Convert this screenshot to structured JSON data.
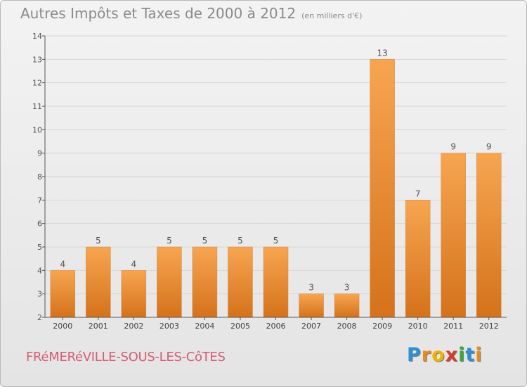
{
  "title": "Autres Impôts et Taxes de 2000 à 2012",
  "subtitle": "(en milliers d'€)",
  "commune": "FRéMERéVILLE-SOUS-LES-CôTES",
  "logo": {
    "letters": [
      "P",
      "r",
      "o",
      "x",
      "i",
      "t",
      "i"
    ],
    "colors": [
      "#2e8fd6",
      "#e98a1c",
      "#f0b400",
      "#d93a2c",
      "#39a935",
      "#2e8fd6",
      "#e98a1c"
    ]
  },
  "colors": {
    "bar_light": "#f7a551",
    "bar_dark": "#d5721b",
    "axis": "#555555",
    "grid": "#d6d6d6"
  },
  "chart_data": {
    "type": "bar",
    "categories": [
      "2000",
      "2001",
      "2002",
      "2003",
      "2004",
      "2005",
      "2006",
      "2007",
      "2008",
      "2009",
      "2010",
      "2011",
      "2012"
    ],
    "values": [
      4,
      5,
      4,
      5,
      5,
      5,
      5,
      3,
      3,
      13,
      7,
      9,
      9
    ],
    "title": "Autres Impôts et Taxes de 2000 à 2012",
    "xlabel": "",
    "ylabel": "",
    "ylim": [
      2,
      14
    ],
    "yticks": [
      2,
      3,
      4,
      5,
      6,
      7,
      8,
      9,
      10,
      11,
      12,
      13,
      14
    ],
    "grid": true
  }
}
